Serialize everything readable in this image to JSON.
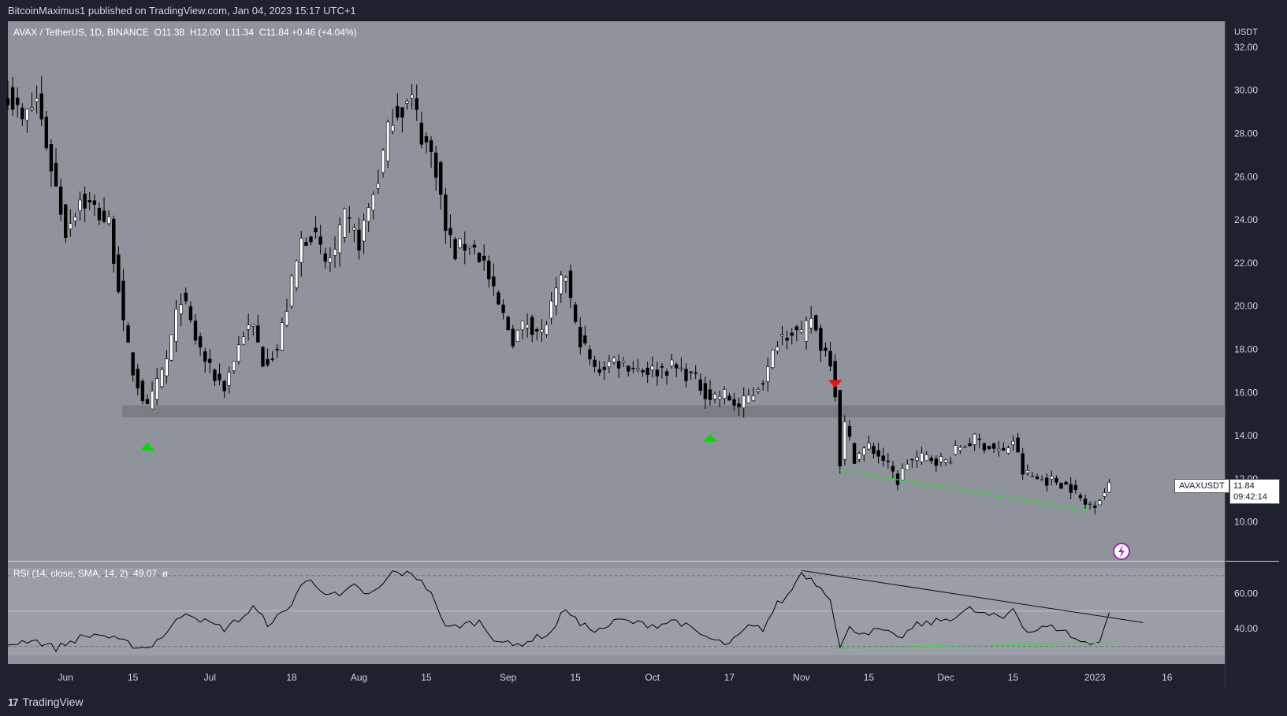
{
  "header": {
    "published": "BitcoinMaximus1 published on TradingView.com, Jan 04, 2023 15:17 UTC+1"
  },
  "legend": {
    "symbol": "AVAX / TetherUS, 1D, BINANCE",
    "o_label": "O",
    "o": "11.38",
    "h_label": "H",
    "h": "12.00",
    "l_label": "L",
    "l": "11.34",
    "c_label": "C",
    "c": "11.84",
    "change": "+0.46 (+4.04%)"
  },
  "rsi_legend": {
    "label": "RSI (14, close, SMA, 14, 2)",
    "value": "49.07",
    "extra": "ø"
  },
  "price_axis": {
    "currency": "USDT",
    "ticks": [
      "32.00",
      "30.00",
      "28.00",
      "26.00",
      "24.00",
      "22.00",
      "20.00",
      "18.00",
      "16.00",
      "14.00",
      "12.00",
      "10.00"
    ]
  },
  "rsi_axis": {
    "ticks": [
      "60.00",
      "40.00"
    ]
  },
  "time_axis": {
    "labels": [
      "Jun",
      "15",
      "Jul",
      "18",
      "Aug",
      "15",
      "Sep",
      "15",
      "Oct",
      "17",
      "Nov",
      "15",
      "Dec",
      "15",
      "2023",
      "16"
    ]
  },
  "ticker_label": "AVAXUSDT",
  "last_price": "11.84",
  "countdown": "09:42:14",
  "footer": {
    "brand": "TradingView",
    "logo": "17"
  },
  "colors": {
    "bg": "#1e222d",
    "pane": "#8f939b",
    "up": "#ffffff",
    "down": "#000000",
    "support_line": "#33dd33",
    "marker_up": "#00dd00",
    "marker_down": "#ee1111",
    "zone": "#6e7178"
  },
  "chart_data": {
    "type": "candlestick",
    "title": "AVAX / TetherUS, 1D, BINANCE",
    "x_range": [
      "2022-05-20",
      "2023-01-28"
    ],
    "ylim": [
      8.2,
      33.2
    ],
    "horizontal_zone": [
      14.85,
      15.4
    ],
    "markers": [
      {
        "date": "2022-06-18",
        "type": "up",
        "price": 13.5
      },
      {
        "date": "2022-10-13",
        "type": "up",
        "price": 13.9
      },
      {
        "date": "2022-11-08",
        "type": "down",
        "price": 16.4
      }
    ],
    "support_line": [
      [
        "2022-11-09",
        12.4
      ],
      [
        "2022-12-31",
        10.5
      ]
    ],
    "close_anchors": [
      [
        "2022-05-20",
        30.0
      ],
      [
        "2022-05-23",
        28.5
      ],
      [
        "2022-05-26",
        29.6
      ],
      [
        "2022-05-29",
        26.5
      ],
      [
        "2022-06-01",
        23.5
      ],
      [
        "2022-06-04",
        25.0
      ],
      [
        "2022-06-07",
        24.5
      ],
      [
        "2022-06-10",
        23.8
      ],
      [
        "2022-06-12",
        21.0
      ],
      [
        "2022-06-13",
        19.0
      ],
      [
        "2022-06-15",
        17.0
      ],
      [
        "2022-06-18",
        15.2
      ],
      [
        "2022-06-22",
        17.5
      ],
      [
        "2022-06-25",
        20.5
      ],
      [
        "2022-06-28",
        18.5
      ],
      [
        "2022-07-01",
        17.0
      ],
      [
        "2022-07-04",
        16.3
      ],
      [
        "2022-07-08",
        18.8
      ],
      [
        "2022-07-10",
        19.0
      ],
      [
        "2022-07-12",
        17.5
      ],
      [
        "2022-07-15",
        18.0
      ],
      [
        "2022-07-18",
        21.0
      ],
      [
        "2022-07-20",
        23.0
      ],
      [
        "2022-07-22",
        23.5
      ],
      [
        "2022-07-25",
        22.0
      ],
      [
        "2022-07-27",
        22.5
      ],
      [
        "2022-07-29",
        24.0
      ],
      [
        "2022-08-01",
        23.0
      ],
      [
        "2022-08-03",
        24.5
      ],
      [
        "2022-08-05",
        26.0
      ],
      [
        "2022-08-08",
        29.0
      ],
      [
        "2022-08-12",
        29.5
      ],
      [
        "2022-08-14",
        28.0
      ],
      [
        "2022-08-17",
        26.5
      ],
      [
        "2022-08-19",
        23.5
      ],
      [
        "2022-08-21",
        22.5
      ],
      [
        "2022-08-24",
        23.0
      ],
      [
        "2022-08-27",
        22.0
      ],
      [
        "2022-08-29",
        20.5
      ],
      [
        "2022-09-02",
        18.5
      ],
      [
        "2022-09-05",
        19.3
      ],
      [
        "2022-09-08",
        18.7
      ],
      [
        "2022-09-11",
        20.5
      ],
      [
        "2022-09-13",
        21.5
      ],
      [
        "2022-09-15",
        19.0
      ],
      [
        "2022-09-19",
        17.0
      ],
      [
        "2022-09-23",
        17.5
      ],
      [
        "2022-09-27",
        17.2
      ],
      [
        "2022-10-01",
        17.0
      ],
      [
        "2022-10-05",
        17.2
      ],
      [
        "2022-10-09",
        16.8
      ],
      [
        "2022-10-13",
        15.8
      ],
      [
        "2022-10-16",
        15.9
      ],
      [
        "2022-10-19",
        15.3
      ],
      [
        "2022-10-22",
        16.0
      ],
      [
        "2022-10-25",
        17.0
      ],
      [
        "2022-10-27",
        18.5
      ],
      [
        "2022-10-30",
        19.0
      ],
      [
        "2022-11-01",
        18.5
      ],
      [
        "2022-11-03",
        19.5
      ],
      [
        "2022-11-05",
        18.2
      ],
      [
        "2022-11-07",
        17.6
      ],
      [
        "2022-11-08",
        16.0
      ],
      [
        "2022-11-09",
        12.8
      ],
      [
        "2022-11-10",
        14.5
      ],
      [
        "2022-11-12",
        13.0
      ],
      [
        "2022-11-15",
        13.5
      ],
      [
        "2022-11-18",
        12.9
      ],
      [
        "2022-11-21",
        11.9
      ],
      [
        "2022-11-23",
        12.8
      ],
      [
        "2022-11-27",
        13.0
      ],
      [
        "2022-12-01",
        12.8
      ],
      [
        "2022-12-04",
        13.5
      ],
      [
        "2022-12-07",
        13.8
      ],
      [
        "2022-12-10",
        13.5
      ],
      [
        "2022-12-13",
        13.2
      ],
      [
        "2022-12-15",
        13.8
      ],
      [
        "2022-12-17",
        12.3
      ],
      [
        "2022-12-20",
        12.0
      ],
      [
        "2022-12-24",
        11.9
      ],
      [
        "2022-12-27",
        11.6
      ],
      [
        "2022-12-30",
        10.8
      ],
      [
        "2023-01-01",
        10.9
      ],
      [
        "2023-01-03",
        11.38
      ],
      [
        "2023-01-04",
        11.84
      ]
    ],
    "last_candle": {
      "date": "2023-01-04",
      "open": 11.38,
      "high": 12.0,
      "low": 11.34,
      "close": 11.84
    },
    "rsi": {
      "ylim": [
        20,
        78
      ],
      "levels": [
        70,
        50,
        30
      ],
      "anchors": [
        [
          "2022-05-20",
          31
        ],
        [
          "2022-05-25",
          34
        ],
        [
          "2022-05-30",
          29
        ],
        [
          "2022-06-04",
          35
        ],
        [
          "2022-06-08",
          37
        ],
        [
          "2022-06-12",
          33
        ],
        [
          "2022-06-16",
          30
        ],
        [
          "2022-06-18",
          29
        ],
        [
          "2022-06-22",
          38
        ],
        [
          "2022-06-26",
          50
        ],
        [
          "2022-06-30",
          44
        ],
        [
          "2022-07-04",
          40
        ],
        [
          "2022-07-08",
          47
        ],
        [
          "2022-07-10",
          52
        ],
        [
          "2022-07-13",
          43
        ],
        [
          "2022-07-17",
          50
        ],
        [
          "2022-07-20",
          65
        ],
        [
          "2022-07-22",
          67
        ],
        [
          "2022-07-25",
          61
        ],
        [
          "2022-07-28",
          58
        ],
        [
          "2022-07-31",
          64
        ],
        [
          "2022-08-03",
          59
        ],
        [
          "2022-08-05",
          62
        ],
        [
          "2022-08-08",
          72
        ],
        [
          "2022-08-11",
          71
        ],
        [
          "2022-08-14",
          68
        ],
        [
          "2022-08-17",
          55
        ],
        [
          "2022-08-19",
          40
        ],
        [
          "2022-08-22",
          42
        ],
        [
          "2022-08-26",
          44
        ],
        [
          "2022-08-29",
          35
        ],
        [
          "2022-09-02",
          30
        ],
        [
          "2022-09-06",
          34
        ],
        [
          "2022-09-10",
          38
        ],
        [
          "2022-09-13",
          52
        ],
        [
          "2022-09-16",
          42
        ],
        [
          "2022-09-20",
          39
        ],
        [
          "2022-09-24",
          45
        ],
        [
          "2022-09-28",
          43
        ],
        [
          "2022-10-02",
          42
        ],
        [
          "2022-10-06",
          45
        ],
        [
          "2022-10-10",
          38
        ],
        [
          "2022-10-14",
          33
        ],
        [
          "2022-10-17",
          31
        ],
        [
          "2022-10-21",
          41
        ],
        [
          "2022-10-24",
          40
        ],
        [
          "2022-10-27",
          54
        ],
        [
          "2022-10-29",
          58
        ],
        [
          "2022-11-01",
          72
        ],
        [
          "2022-11-04",
          66
        ],
        [
          "2022-11-07",
          58
        ],
        [
          "2022-11-09",
          29
        ],
        [
          "2022-11-11",
          40
        ],
        [
          "2022-11-14",
          38
        ],
        [
          "2022-11-18",
          39
        ],
        [
          "2022-11-21",
          34
        ],
        [
          "2022-11-25",
          42
        ],
        [
          "2022-11-29",
          44
        ],
        [
          "2022-12-03",
          47
        ],
        [
          "2022-12-06",
          51
        ],
        [
          "2022-12-09",
          48
        ],
        [
          "2022-12-13",
          46
        ],
        [
          "2022-12-15",
          52
        ],
        [
          "2022-12-18",
          38
        ],
        [
          "2022-12-22",
          41
        ],
        [
          "2022-12-25",
          40
        ],
        [
          "2022-12-28",
          34
        ],
        [
          "2022-12-31",
          31
        ],
        [
          "2023-01-02",
          34
        ],
        [
          "2023-01-04",
          49.07
        ]
      ],
      "resistance_line": [
        [
          "2022-11-01",
          73
        ],
        [
          "2023-01-11",
          43.5
        ]
      ],
      "support_line": [
        [
          "2022-11-09",
          29
        ],
        [
          "2023-01-05",
          32
        ]
      ]
    }
  }
}
